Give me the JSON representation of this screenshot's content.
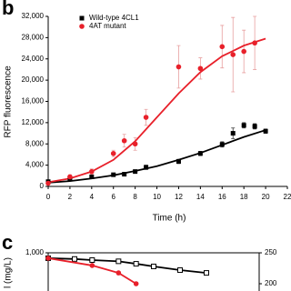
{
  "chart_data": [
    {
      "type": "scatter",
      "panel": "b",
      "xlabel": "Time (h)",
      "ylabel": "RFP fluorescence",
      "xlim": [
        0,
        22
      ],
      "xticks": [
        0,
        2,
        4,
        6,
        8,
        10,
        12,
        14,
        16,
        18,
        20,
        22
      ],
      "ylim": [
        0,
        32000
      ],
      "yticks": [
        0,
        {
          "value": 4000,
          "label": "4,000"
        },
        {
          "value": 8000,
          "label": "8,000"
        },
        {
          "value": 12000,
          "label": "12,000"
        },
        {
          "value": 16000,
          "label": "16,000"
        },
        {
          "value": 20000,
          "label": "20,000"
        },
        {
          "value": 24000,
          "label": "24,000"
        },
        {
          "value": 28000,
          "label": "28,000"
        },
        {
          "value": 32000,
          "label": "32,000"
        }
      ],
      "legend": "upper left",
      "series": [
        {
          "name": "Wild-type 4CL1",
          "color": "#000000",
          "marker": "square",
          "x": [
            0,
            2,
            4,
            6,
            7,
            8,
            9,
            12,
            14,
            16,
            17,
            18,
            19,
            20
          ],
          "values": [
            900,
            1500,
            1800,
            2200,
            2300,
            2800,
            3600,
            4700,
            6200,
            7900,
            10000,
            11500,
            11300,
            10400
          ],
          "errors": [
            300,
            300,
            300,
            300,
            300,
            300,
            400,
            400,
            400,
            500,
            1000,
            500,
            500,
            400
          ]
        },
        {
          "name": "4AT mutant",
          "color": "#e8202a",
          "marker": "circle",
          "x": [
            0,
            2,
            4,
            6,
            7,
            8,
            9,
            12,
            14,
            16,
            17,
            18,
            19
          ],
          "values": [
            600,
            1800,
            2800,
            6200,
            8600,
            8000,
            13000,
            22500,
            22200,
            26300,
            24800,
            25400,
            27000
          ],
          "errors": [
            300,
            400,
            500,
            600,
            1200,
            1200,
            1500,
            4000,
            2000,
            4000,
            7000,
            4000,
            5000
          ]
        },
        {
          "color": "#000000",
          "line": true,
          "x": [
            0,
            2,
            4,
            6,
            8,
            10,
            12,
            14,
            16,
            18,
            20
          ],
          "values": [
            700,
            1000,
            1500,
            2100,
            2900,
            3800,
            5000,
            6300,
            7800,
            9300,
            10600
          ]
        },
        {
          "color": "#e8202a",
          "line": true,
          "x": [
            0,
            2,
            4,
            6,
            8,
            10,
            12,
            14,
            16,
            18,
            20
          ],
          "values": [
            800,
            1500,
            2800,
            5000,
            8500,
            13000,
            17500,
            21500,
            24500,
            26500,
            27800
          ]
        }
      ]
    },
    {
      "type": "line",
      "panel": "c",
      "ylabel": "l (mg/L)",
      "xlim": [
        0,
        24
      ],
      "ylim": [
        0,
        1000
      ],
      "yticks": [
        {
          "value": 1000,
          "label": "1,000"
        }
      ],
      "y2lim": [
        0,
        250
      ],
      "y2ticks": [
        200,
        250
      ],
      "series": [
        {
          "color": "#000000",
          "marker": "open-square",
          "x": [
            0,
            3,
            5,
            8,
            10,
            12,
            15,
            18
          ],
          "values": [
            965,
            960,
            953,
            945,
            929,
            912,
            888,
            870
          ]
        },
        {
          "color": "#e8202a",
          "marker": "circle",
          "x": [
            0,
            5,
            8,
            10
          ],
          "values": [
            965,
            918,
            870,
            800
          ]
        }
      ]
    }
  ]
}
